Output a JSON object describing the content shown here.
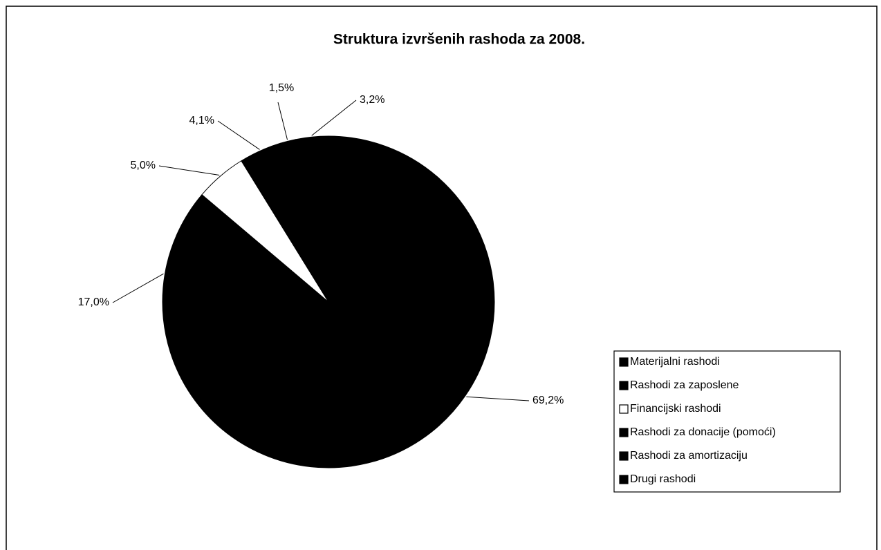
{
  "chart_data": {
    "type": "pie",
    "title": "Struktura izvršenih rashoda za 2008.",
    "categories": [
      "Materijalni rashodi",
      "Rashodi za zaposlene",
      "Financijski rashodi",
      "Rashodi za donacije (pomoći)",
      "Rashodi za amortizaciju",
      "Drugi rashodi"
    ],
    "values": [
      69.2,
      17.0,
      5.0,
      4.1,
      1.5,
      3.2
    ],
    "value_labels": [
      "69,2%",
      "17,0%",
      "5,0%",
      "4,1%",
      "1,5%",
      "3,2%"
    ],
    "colors": [
      "#000000",
      "#000000",
      "#ffffff",
      "#000000",
      "#000000",
      "#000000"
    ],
    "legend": "right"
  }
}
